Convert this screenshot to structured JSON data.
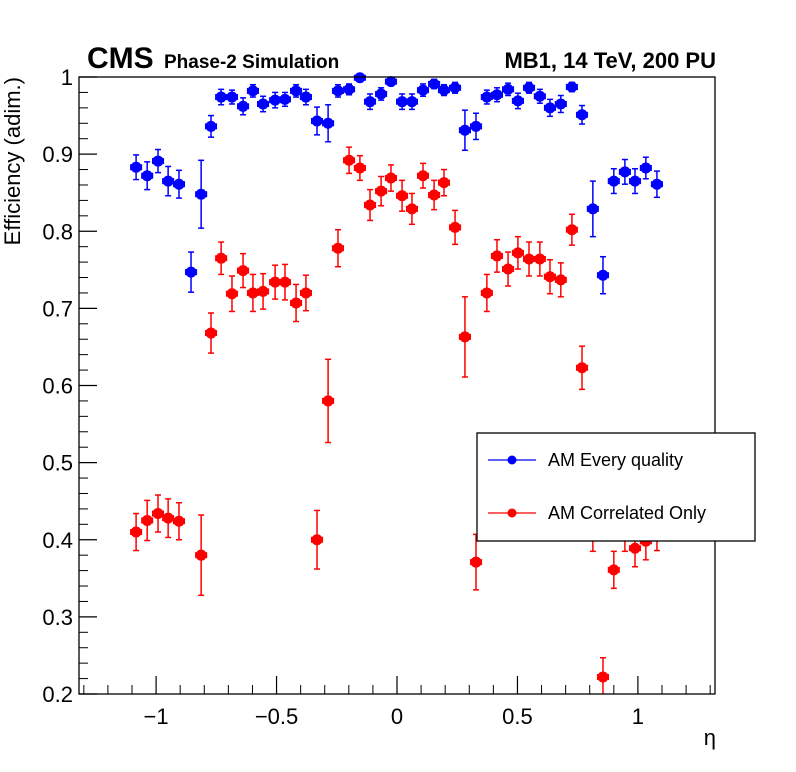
{
  "header": {
    "experiment": "CMS",
    "subtitle": "Phase-2 Simulation",
    "right_title": "MB1, 14 TeV, 200 PU"
  },
  "chart_data": {
    "type": "scatter",
    "title": "",
    "xlabel": "η",
    "ylabel": "Efficiency (adim.)",
    "xlim": [
      -1.32,
      1.32
    ],
    "ylim": [
      0.2,
      1.0
    ],
    "x_ticks": [
      -1,
      -0.5,
      0,
      0.5,
      1
    ],
    "x_tick_labels": [
      "−1",
      "−0.5",
      "0",
      "0.5",
      "1"
    ],
    "y_ticks": [
      0.2,
      0.3,
      0.4,
      0.5,
      0.6,
      0.7,
      0.8,
      0.9,
      1.0
    ],
    "y_tick_labels": [
      "0.2",
      "0.3",
      "0.4",
      "0.5",
      "0.6",
      "0.7",
      "0.8",
      "0.9",
      "1"
    ],
    "grid": false,
    "legend_position": "right-middle",
    "x_bin_half_width": 0.022,
    "series": [
      {
        "name": "AM Every quality",
        "color": "#0000ff",
        "points": [
          {
            "x": -1.083,
            "y": 0.883,
            "err": 0.016
          },
          {
            "x": -1.037,
            "y": 0.872,
            "err": 0.018
          },
          {
            "x": -0.992,
            "y": 0.891,
            "err": 0.015
          },
          {
            "x": -0.95,
            "y": 0.865,
            "err": 0.019
          },
          {
            "x": -0.905,
            "y": 0.861,
            "err": 0.018
          },
          {
            "x": -0.855,
            "y": 0.747,
            "err": 0.026
          },
          {
            "x": -0.813,
            "y": 0.848,
            "err": 0.044
          },
          {
            "x": -0.772,
            "y": 0.936,
            "err": 0.014
          },
          {
            "x": -0.73,
            "y": 0.974,
            "err": 0.01
          },
          {
            "x": -0.685,
            "y": 0.974,
            "err": 0.009
          },
          {
            "x": -0.639,
            "y": 0.962,
            "err": 0.011
          },
          {
            "x": -0.598,
            "y": 0.982,
            "err": 0.008
          },
          {
            "x": -0.556,
            "y": 0.965,
            "err": 0.01
          },
          {
            "x": -0.506,
            "y": 0.97,
            "err": 0.01
          },
          {
            "x": -0.465,
            "y": 0.971,
            "err": 0.009
          },
          {
            "x": -0.419,
            "y": 0.982,
            "err": 0.008
          },
          {
            "x": -0.378,
            "y": 0.974,
            "err": 0.01
          },
          {
            "x": -0.332,
            "y": 0.943,
            "err": 0.018
          },
          {
            "x": -0.286,
            "y": 0.94,
            "err": 0.024
          },
          {
            "x": -0.245,
            "y": 0.982,
            "err": 0.008
          },
          {
            "x": -0.199,
            "y": 0.984,
            "err": 0.007
          },
          {
            "x": -0.154,
            "y": 0.999,
            "err": 0.004
          },
          {
            "x": -0.112,
            "y": 0.968,
            "err": 0.01
          },
          {
            "x": -0.066,
            "y": 0.978,
            "err": 0.008
          },
          {
            "x": -0.025,
            "y": 0.994,
            "err": 0.005
          },
          {
            "x": 0.021,
            "y": 0.968,
            "err": 0.01
          },
          {
            "x": 0.062,
            "y": 0.968,
            "err": 0.01
          },
          {
            "x": 0.108,
            "y": 0.983,
            "err": 0.008
          },
          {
            "x": 0.154,
            "y": 0.991,
            "err": 0.006
          },
          {
            "x": 0.195,
            "y": 0.983,
            "err": 0.007
          },
          {
            "x": 0.241,
            "y": 0.986,
            "err": 0.007
          },
          {
            "x": 0.282,
            "y": 0.931,
            "err": 0.026
          },
          {
            "x": 0.328,
            "y": 0.936,
            "err": 0.017
          },
          {
            "x": 0.373,
            "y": 0.974,
            "err": 0.009
          },
          {
            "x": 0.415,
            "y": 0.977,
            "err": 0.009
          },
          {
            "x": 0.461,
            "y": 0.984,
            "err": 0.008
          },
          {
            "x": 0.502,
            "y": 0.969,
            "err": 0.01
          },
          {
            "x": 0.548,
            "y": 0.986,
            "err": 0.007
          },
          {
            "x": 0.593,
            "y": 0.975,
            "err": 0.009
          },
          {
            "x": 0.635,
            "y": 0.96,
            "err": 0.011
          },
          {
            "x": 0.68,
            "y": 0.965,
            "err": 0.011
          },
          {
            "x": 0.726,
            "y": 0.987,
            "err": 0.006
          },
          {
            "x": 0.768,
            "y": 0.951,
            "err": 0.012
          },
          {
            "x": 0.813,
            "y": 0.829,
            "err": 0.036
          },
          {
            "x": 0.855,
            "y": 0.743,
            "err": 0.024
          },
          {
            "x": 0.9,
            "y": 0.865,
            "err": 0.016
          },
          {
            "x": 0.946,
            "y": 0.877,
            "err": 0.016
          },
          {
            "x": 0.988,
            "y": 0.865,
            "err": 0.016
          },
          {
            "x": 1.033,
            "y": 0.882,
            "err": 0.014
          },
          {
            "x": 1.079,
            "y": 0.861,
            "err": 0.017
          }
        ]
      },
      {
        "name": "AM Correlated Only",
        "color": "#ff0000",
        "points": [
          {
            "x": -1.083,
            "y": 0.41,
            "err": 0.024
          },
          {
            "x": -1.037,
            "y": 0.425,
            "err": 0.026
          },
          {
            "x": -0.992,
            "y": 0.434,
            "err": 0.024
          },
          {
            "x": -0.95,
            "y": 0.428,
            "err": 0.025
          },
          {
            "x": -0.905,
            "y": 0.424,
            "err": 0.024
          },
          {
            "x": -0.813,
            "y": 0.38,
            "err": 0.052
          },
          {
            "x": -0.772,
            "y": 0.668,
            "err": 0.026
          },
          {
            "x": -0.73,
            "y": 0.765,
            "err": 0.021
          },
          {
            "x": -0.685,
            "y": 0.719,
            "err": 0.023
          },
          {
            "x": -0.639,
            "y": 0.749,
            "err": 0.022
          },
          {
            "x": -0.598,
            "y": 0.72,
            "err": 0.024
          },
          {
            "x": -0.556,
            "y": 0.722,
            "err": 0.023
          },
          {
            "x": -0.506,
            "y": 0.734,
            "err": 0.022
          },
          {
            "x": -0.465,
            "y": 0.734,
            "err": 0.023
          },
          {
            "x": -0.419,
            "y": 0.707,
            "err": 0.024
          },
          {
            "x": -0.378,
            "y": 0.72,
            "err": 0.023
          },
          {
            "x": -0.332,
            "y": 0.4,
            "err": 0.038
          },
          {
            "x": -0.286,
            "y": 0.58,
            "err": 0.054
          },
          {
            "x": -0.245,
            "y": 0.778,
            "err": 0.024
          },
          {
            "x": -0.199,
            "y": 0.892,
            "err": 0.017
          },
          {
            "x": -0.154,
            "y": 0.882,
            "err": 0.016
          },
          {
            "x": -0.112,
            "y": 0.834,
            "err": 0.02
          },
          {
            "x": -0.066,
            "y": 0.852,
            "err": 0.019
          },
          {
            "x": -0.025,
            "y": 0.869,
            "err": 0.017
          },
          {
            "x": 0.021,
            "y": 0.846,
            "err": 0.02
          },
          {
            "x": 0.062,
            "y": 0.829,
            "err": 0.02
          },
          {
            "x": 0.108,
            "y": 0.872,
            "err": 0.016
          },
          {
            "x": 0.154,
            "y": 0.847,
            "err": 0.019
          },
          {
            "x": 0.195,
            "y": 0.863,
            "err": 0.017
          },
          {
            "x": 0.241,
            "y": 0.805,
            "err": 0.022
          },
          {
            "x": 0.282,
            "y": 0.663,
            "err": 0.052
          },
          {
            "x": 0.328,
            "y": 0.371,
            "err": 0.036
          },
          {
            "x": 0.373,
            "y": 0.72,
            "err": 0.024
          },
          {
            "x": 0.415,
            "y": 0.768,
            "err": 0.021
          },
          {
            "x": 0.461,
            "y": 0.751,
            "err": 0.022
          },
          {
            "x": 0.502,
            "y": 0.772,
            "err": 0.021
          },
          {
            "x": 0.548,
            "y": 0.764,
            "err": 0.022
          },
          {
            "x": 0.593,
            "y": 0.764,
            "err": 0.022
          },
          {
            "x": 0.635,
            "y": 0.741,
            "err": 0.022
          },
          {
            "x": 0.68,
            "y": 0.737,
            "err": 0.022
          },
          {
            "x": 0.726,
            "y": 0.802,
            "err": 0.02
          },
          {
            "x": 0.768,
            "y": 0.623,
            "err": 0.028
          },
          {
            "x": 0.813,
            "y": 0.41,
            "err": 0.025
          },
          {
            "x": 0.855,
            "y": 0.222,
            "err": 0.025
          },
          {
            "x": 0.9,
            "y": 0.361,
            "err": 0.024
          },
          {
            "x": 0.946,
            "y": 0.41,
            "err": 0.025
          },
          {
            "x": 0.988,
            "y": 0.389,
            "err": 0.024
          },
          {
            "x": 1.033,
            "y": 0.398,
            "err": 0.024
          },
          {
            "x": 1.079,
            "y": 0.41,
            "err": 0.024
          }
        ]
      }
    ]
  }
}
